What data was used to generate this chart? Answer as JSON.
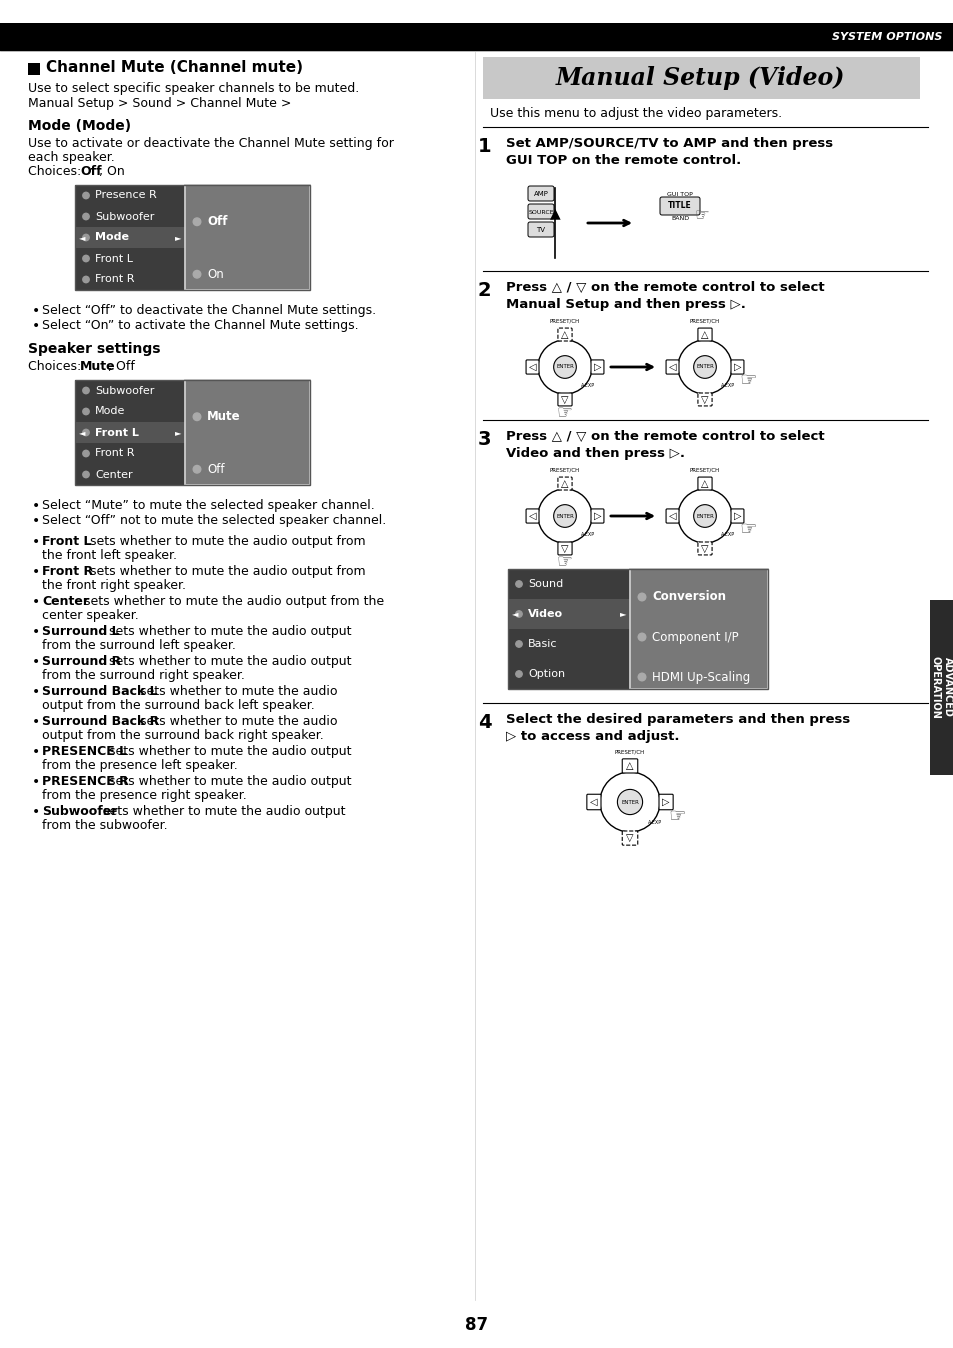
{
  "page_bg": "#ffffff",
  "header_text": "SYSTEM OPTIONS",
  "left_section_title": "Channel Mute (Channel mute)",
  "left_desc1": "Use to select specific speaker channels to be muted.",
  "left_desc2": "Manual Setup > Sound > Channel Mute >",
  "mode_heading": "Mode (Mode)",
  "mode_desc1": "Use to activate or deactivate the Channel Mute setting for",
  "mode_desc2": "each speaker.",
  "mode_choices_pre": "Choices: ",
  "mode_choices_bold": "Off",
  "mode_choices_rest": ", On",
  "screen1_items": [
    "Presence R",
    "Subwoofer",
    "Mode",
    "Front L",
    "Front R"
  ],
  "screen1_sel": 2,
  "screen1_sub": [
    "Off",
    "On"
  ],
  "screen1_sub_sel": 0,
  "mode_bullets": [
    "Select “Off” to deactivate the Channel Mute settings.",
    "Select “On” to activate the Channel Mute settings."
  ],
  "spk_heading": "Speaker settings",
  "spk_choices_bold": "Mute",
  "spk_choices_rest": ", Off",
  "screen2_items": [
    "Subwoofer",
    "Mode",
    "Front L",
    "Front R",
    "Center"
  ],
  "screen2_sel": 2,
  "screen2_sub": [
    "Mute",
    "Off"
  ],
  "screen2_sub_sel": 0,
  "spk_bullets": [
    "Select “Mute” to mute the selected speaker channel.",
    "Select “Off” not to mute the selected speaker channel."
  ],
  "detail_bullets": [
    [
      "Front L",
      " sets whether to mute the audio output from",
      "the front left speaker."
    ],
    [
      "Front R",
      " sets whether to mute the audio output from",
      "the front right speaker."
    ],
    [
      "Center",
      " sets whether to mute the audio output from the",
      "center speaker."
    ],
    [
      "Surround L",
      " sets whether to mute the audio output",
      "from the surround left speaker."
    ],
    [
      "Surround R",
      " sets whether to mute the audio output",
      "from the surround right speaker."
    ],
    [
      "Surround Back L",
      " sets whether to mute the audio",
      "output from the surround back left speaker."
    ],
    [
      "Surround Back R",
      " sets whether to mute the audio",
      "output from the surround back right speaker."
    ],
    [
      "PRESENCE L",
      " sets whether to mute the audio output",
      "from the presence left speaker."
    ],
    [
      "PRESENCE R",
      " sets whether to mute the audio output",
      "from the presence right speaker."
    ],
    [
      "Subwoofer",
      " sets whether to mute the audio output",
      "from the subwoofer."
    ]
  ],
  "right_header": "Manual Setup (Video)",
  "right_intro": "Use this menu to adjust the video parameters.",
  "step1_bold": "Set AMP/SOURCE/TV to AMP and then press\nGUI TOP on the remote control.",
  "step2_bold": "Press △ / ▽ on the remote control to select\nManual Setup and then press ▷.",
  "step3_bold": "Press △ / ▽ on the remote control to select\nVideo and then press ▷.",
  "step4_bold": "Select the desired parameters and then press\n▷ to access and adjust.",
  "screen3_items": [
    "Sound",
    "Video",
    "Basic",
    "Option"
  ],
  "screen3_sel": 1,
  "screen3_sub": [
    "Conversion",
    "Component I/P",
    "HDMI Up-Scaling"
  ],
  "screen3_sub_sel": 0,
  "page_number": "87",
  "side_label": "ADVANCED\nOPERATION"
}
